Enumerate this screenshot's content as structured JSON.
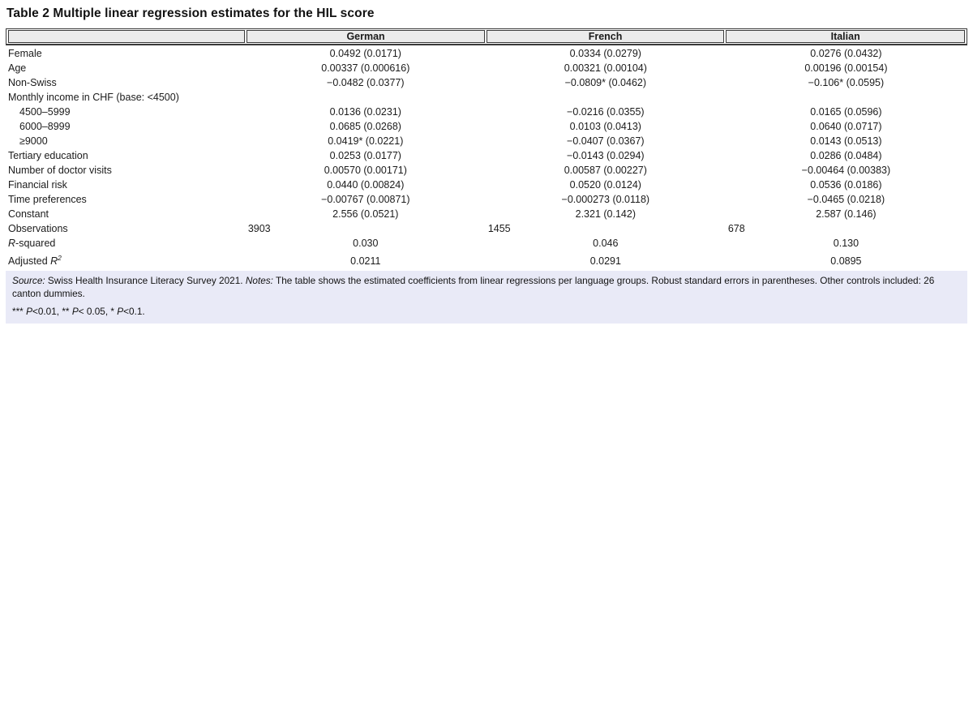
{
  "page": {
    "title": "Table 2 Multiple linear regression estimates for the HIL score"
  },
  "colors": {
    "header_bg": "#ebebeb",
    "notes_bg": "#e9eaf7",
    "border": "#3a3a3a",
    "text": "#1b1b1b"
  },
  "table": {
    "column_headers": [
      "",
      "German",
      "French",
      "Italian"
    ],
    "rows": [
      {
        "label": "Female",
        "values": [
          "0.0492 (0.0171)",
          "0.0334 (0.0279)",
          "0.0276 (0.0432)"
        ]
      },
      {
        "label": "Age",
        "values": [
          "0.00337 (0.000616)",
          "0.00321 (0.00104)",
          "0.00196 (0.00154)"
        ]
      },
      {
        "label": "Non-Swiss",
        "values": [
          "−0.0482 (0.0377)",
          "−0.0809* (0.0462)",
          "−0.106* (0.0595)"
        ]
      },
      {
        "label": "Monthly income in CHF (base: <4500)",
        "values": [
          "",
          "",
          ""
        ]
      },
      {
        "label": "4500–5999",
        "indent": true,
        "values": [
          "0.0136 (0.0231)",
          "−0.0216 (0.0355)",
          "0.0165 (0.0596)"
        ]
      },
      {
        "label": "6000–8999",
        "indent": true,
        "values": [
          "0.0685 (0.0268)",
          "0.0103 (0.0413)",
          "0.0640 (0.0717)"
        ]
      },
      {
        "label": "≥9000",
        "indent": true,
        "values": [
          "0.0419* (0.0221)",
          "−0.0407 (0.0367)",
          "0.0143 (0.0513)"
        ]
      },
      {
        "label": "Tertiary education",
        "values": [
          "0.0253 (0.0177)",
          "−0.0143 (0.0294)",
          "0.0286 (0.0484)"
        ]
      },
      {
        "label": "Number of doctor visits",
        "values": [
          "0.00570 (0.00171)",
          "0.00587 (0.00227)",
          "−0.00464 (0.00383)"
        ]
      },
      {
        "label": "Financial risk",
        "values": [
          "0.0440 (0.00824)",
          "0.0520 (0.0124)",
          "0.0536 (0.0186)"
        ]
      },
      {
        "label": "Time preferences",
        "values": [
          "−0.00767 (0.00871)",
          "−0.000273 (0.0118)",
          "−0.0465 (0.0218)"
        ]
      },
      {
        "label": "Constant",
        "values": [
          "2.556 (0.0521)",
          "2.321 (0.142)",
          "2.587 (0.146)"
        ]
      },
      {
        "label": "Observations",
        "align": "left",
        "values": [
          "3903",
          "1455",
          "678"
        ]
      },
      {
        "label": "R-squared",
        "label_parts": [
          {
            "text": "R",
            "italic": true
          },
          {
            "text": "-squared"
          }
        ],
        "values": [
          "0.030",
          "0.046",
          "0.130"
        ]
      },
      {
        "label": "Adjusted R2",
        "tall": true,
        "label_parts": [
          {
            "text": "Adjusted "
          },
          {
            "text": "R",
            "italic": true
          },
          {
            "text": "2",
            "italic": true,
            "sup": true
          }
        ],
        "values": [
          "0.0211",
          "0.0291",
          "0.0895"
        ]
      }
    ],
    "notes": {
      "line1_parts": [
        {
          "text": "Source:",
          "italic": true
        },
        {
          "text": " Swiss Health Insurance Literacy Survey 2021. "
        },
        {
          "text": "Notes:",
          "italic": true
        },
        {
          "text": " The table shows the estimated coefficients from linear regressions per language groups. Robust standard errors in parentheses. Other controls included: 26 canton dummies."
        }
      ],
      "line2_parts": [
        {
          "text": "*** "
        },
        {
          "text": "P",
          "italic": true
        },
        {
          "text": "<0.01, ** "
        },
        {
          "text": "P",
          "italic": true
        },
        {
          "text": "< 0.05, * "
        },
        {
          "text": "P",
          "italic": true
        },
        {
          "text": "<0.1."
        }
      ]
    }
  }
}
